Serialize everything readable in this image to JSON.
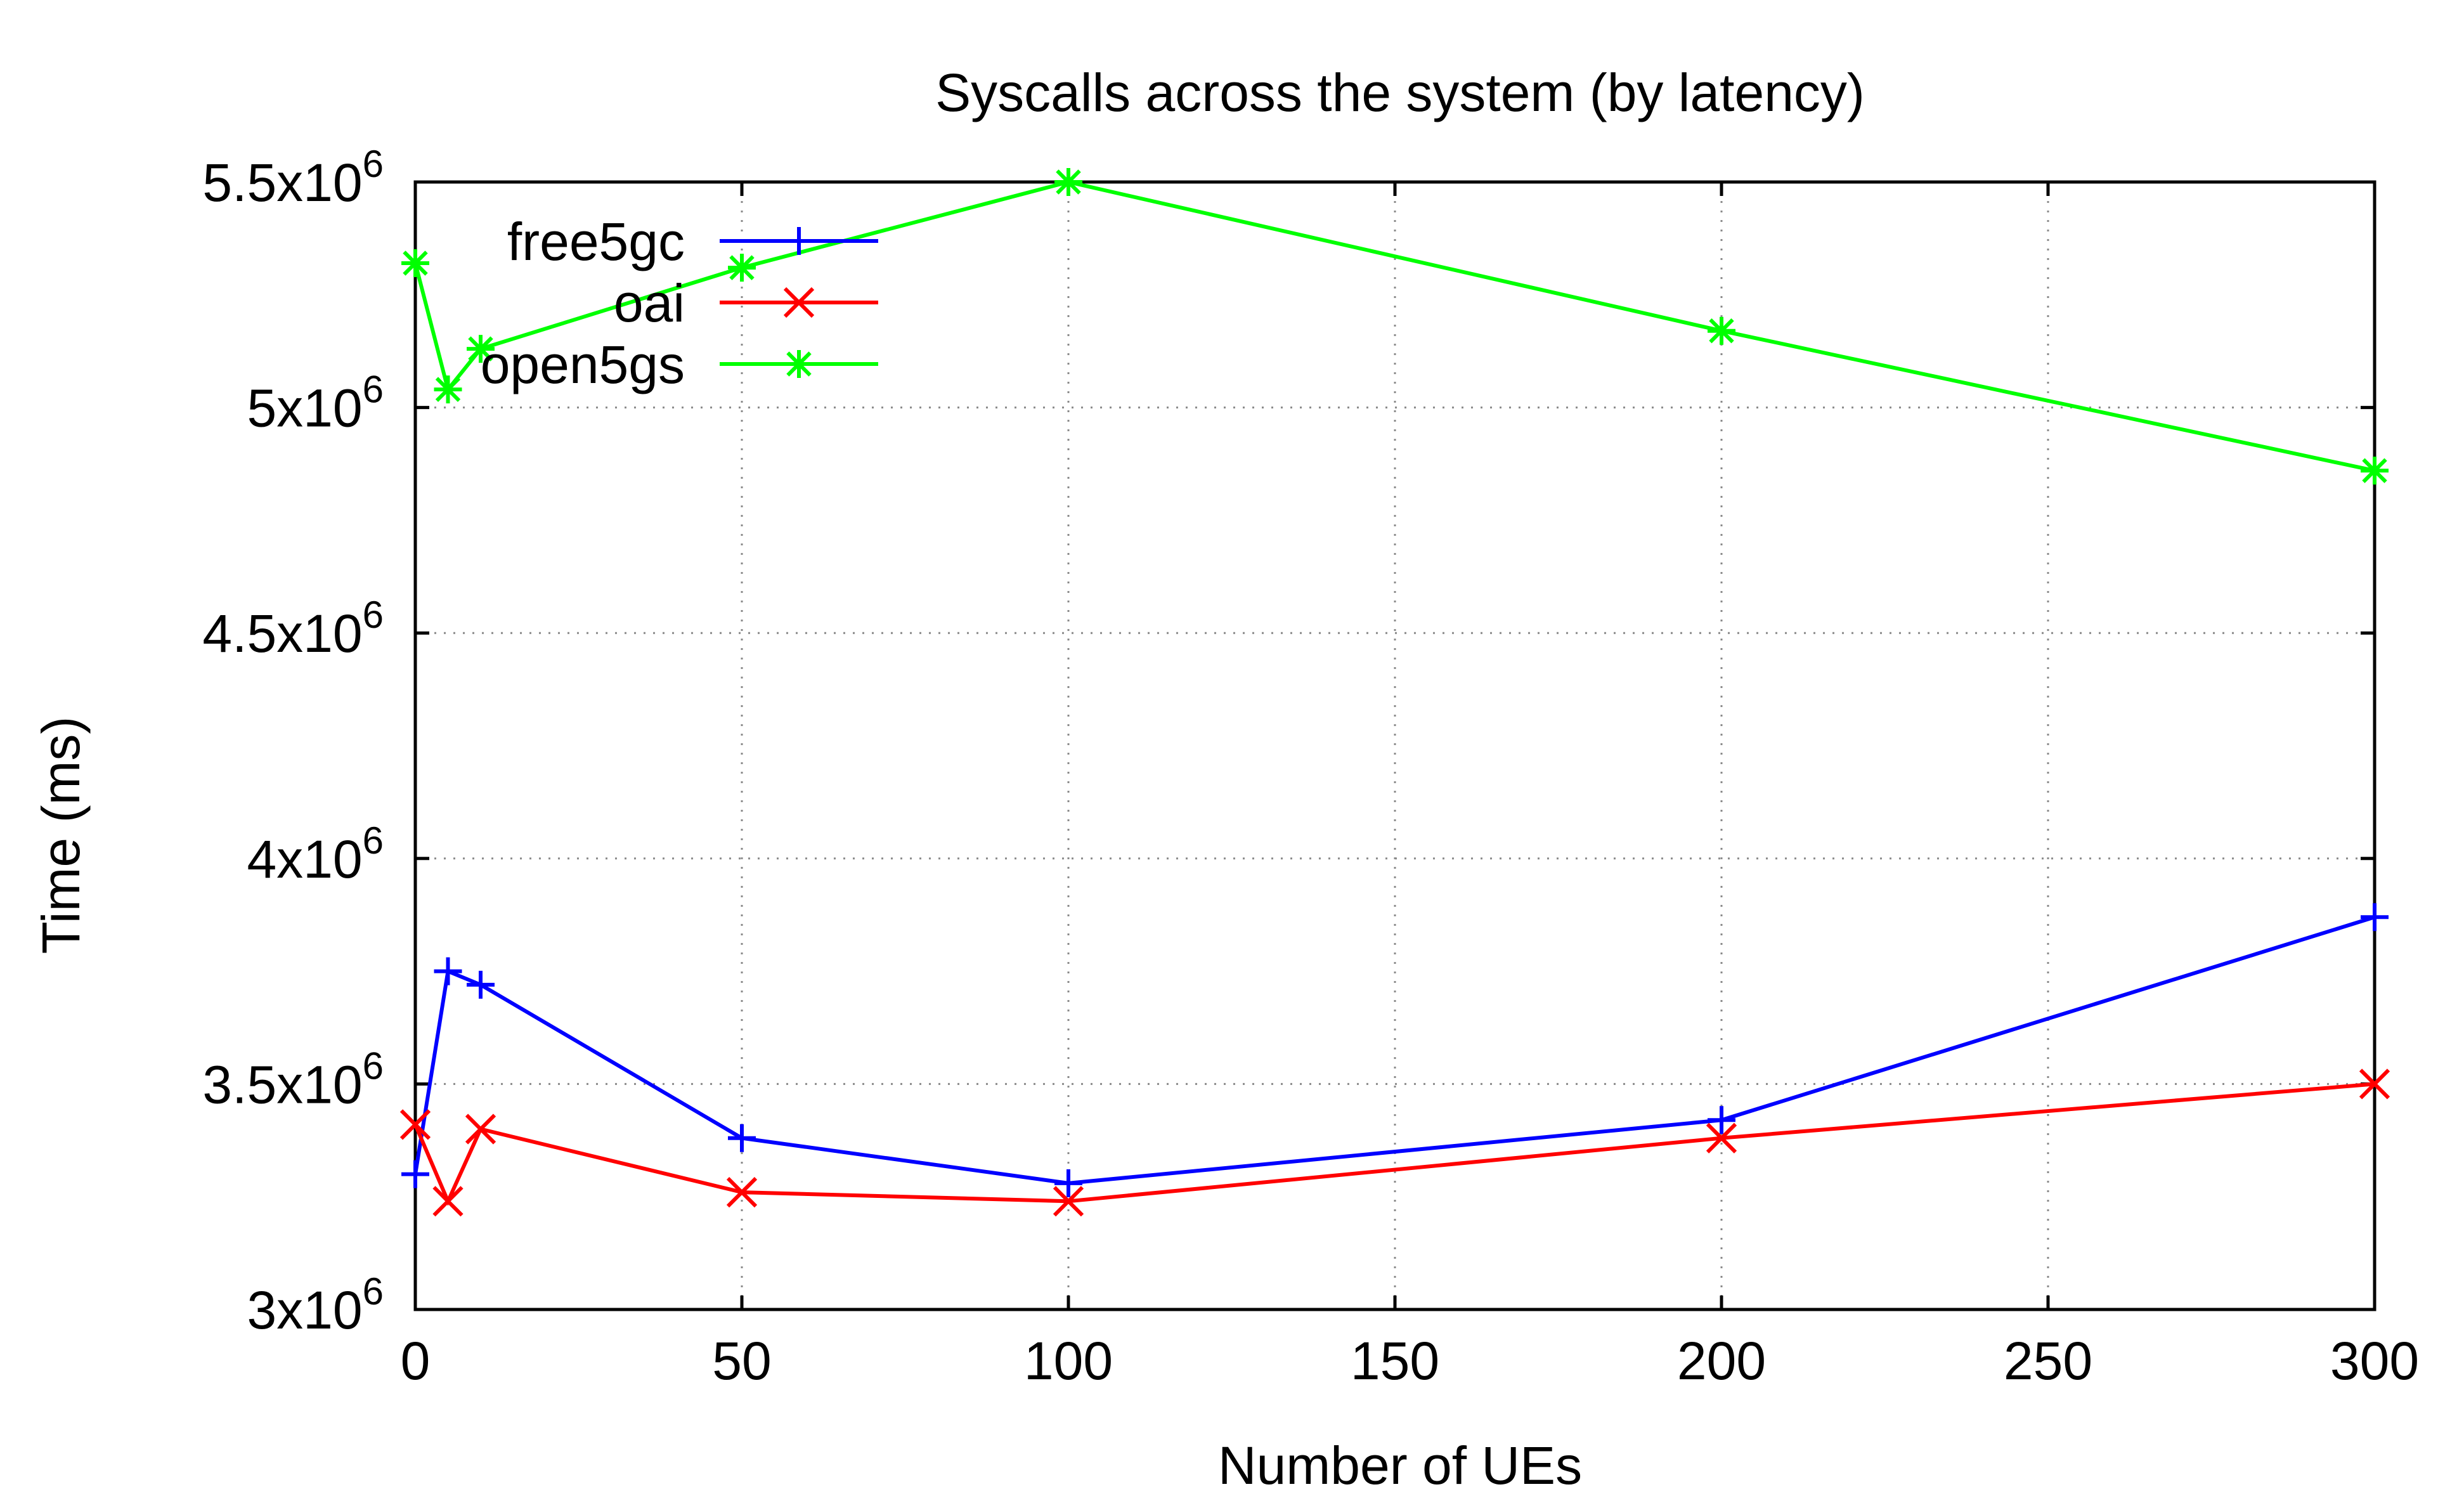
{
  "chart_data": {
    "type": "line",
    "title": "Syscalls across the system (by latency)",
    "xlabel": "Number of UEs",
    "ylabel": "Time (ms)",
    "xlim": [
      0,
      300
    ],
    "ylim": [
      3000000,
      5500000
    ],
    "x_ticks": [
      {
        "value": 0,
        "label": "0"
      },
      {
        "value": 50,
        "label": "50"
      },
      {
        "value": 100,
        "label": "100"
      },
      {
        "value": 150,
        "label": "150"
      },
      {
        "value": 200,
        "label": "200"
      },
      {
        "value": 250,
        "label": "250"
      },
      {
        "value": 300,
        "label": "300"
      }
    ],
    "y_ticks": [
      {
        "value": 3000000,
        "mantissa": "3",
        "exponent": "6"
      },
      {
        "value": 3500000,
        "mantissa": "3.5",
        "exponent": "6"
      },
      {
        "value": 4000000,
        "mantissa": "4",
        "exponent": "6"
      },
      {
        "value": 4500000,
        "mantissa": "4.5",
        "exponent": "6"
      },
      {
        "value": 5000000,
        "mantissa": "5",
        "exponent": "6"
      },
      {
        "value": 5500000,
        "mantissa": "5.5",
        "exponent": "6"
      }
    ],
    "grid": true,
    "legend_position": "top-left",
    "series": [
      {
        "name": "free5gc",
        "color": "#0000ff",
        "marker": "plus",
        "points": [
          [
            0,
            3300000
          ],
          [
            5,
            3750000
          ],
          [
            10,
            3720000
          ],
          [
            50,
            3380000
          ],
          [
            100,
            3280000
          ],
          [
            200,
            3420000
          ],
          [
            300,
            3870000
          ]
        ]
      },
      {
        "name": "oai",
        "color": "#ff0000",
        "marker": "cross",
        "points": [
          [
            0,
            3410000
          ],
          [
            5,
            3240000
          ],
          [
            10,
            3400000
          ],
          [
            50,
            3260000
          ],
          [
            100,
            3240000
          ],
          [
            200,
            3380000
          ],
          [
            300,
            3500000
          ]
        ]
      },
      {
        "name": "open5gs",
        "color": "#00ff00",
        "marker": "star",
        "points": [
          [
            0,
            5320000
          ],
          [
            5,
            5040000
          ],
          [
            10,
            5130000
          ],
          [
            50,
            5310000
          ],
          [
            100,
            5500000
          ],
          [
            200,
            5170000
          ],
          [
            300,
            4860000
          ]
        ]
      }
    ]
  }
}
